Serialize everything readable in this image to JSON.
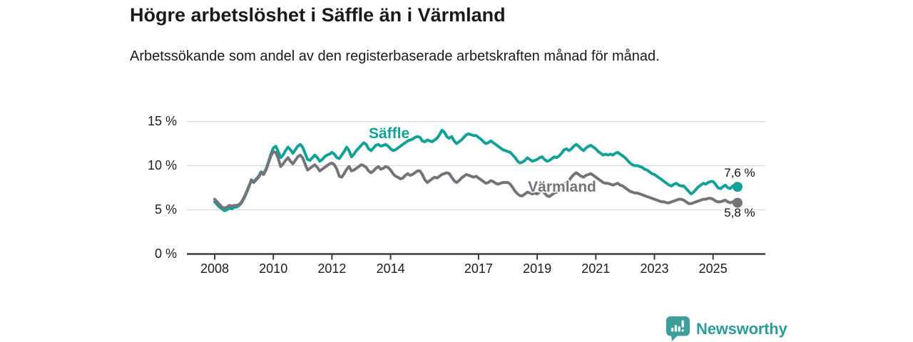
{
  "branding": {
    "logo_text": "Newsworthy",
    "logo_icon": "bar-chart-speech-bubble-icon",
    "logo_color": "#2e9b98",
    "icon_color": "#3d9e9b"
  },
  "chart_data": {
    "type": "line",
    "title": "Högre arbetslöshet i Säffle än i Värmland",
    "subtitle": "Arbetssökande som andel av den registerbaserade arbetskraften månad för månad.",
    "x_start": "2008-01",
    "x_end": "2025-11",
    "x_start_year": 2008,
    "points_per_year": 12,
    "x_tick_labels": [
      "2008",
      "2010",
      "2012",
      "2014",
      "2017",
      "2019",
      "2021",
      "2023",
      "2025"
    ],
    "x_tick_years": [
      2008,
      2010,
      2012,
      2014,
      2017,
      2019,
      2021,
      2023,
      2025
    ],
    "y_tick_labels": [
      "0 %",
      "5 %",
      "10 %",
      "15 %"
    ],
    "y_tick_values": [
      0,
      5,
      10,
      15
    ],
    "ylim": [
      0,
      15.5
    ],
    "grid": "horizontal",
    "legend": "inline-series-labels",
    "axis_color": "#3b3b3b",
    "grid_color": "#d8d8d8",
    "series": [
      {
        "id": "saffle",
        "name": "Säffle",
        "color": "#12a196",
        "end_label": "7,6 %",
        "end_value": 7.6,
        "label_x": 2013.95,
        "label_y": 13.6,
        "values": [
          5.9,
          5.6,
          5.3,
          5.1,
          4.9,
          5.0,
          5.2,
          5.1,
          5.3,
          5.3,
          5.5,
          5.8,
          6.3,
          6.9,
          7.6,
          8.4,
          8.2,
          8.5,
          8.8,
          9.3,
          9.1,
          9.6,
          10.4,
          11.3,
          12.0,
          12.2,
          11.6,
          10.9,
          11.2,
          11.7,
          12.1,
          11.8,
          11.4,
          11.8,
          12.2,
          12.4,
          12.1,
          11.4,
          10.7,
          10.6,
          10.9,
          11.2,
          10.9,
          10.5,
          10.7,
          11.0,
          11.2,
          11.3,
          11.5,
          11.3,
          10.9,
          10.8,
          11.2,
          11.6,
          12.1,
          11.7,
          11.0,
          11.3,
          11.7,
          12.0,
          12.3,
          12.6,
          12.4,
          11.9,
          11.7,
          12.0,
          12.3,
          12.4,
          12.2,
          12.3,
          12.4,
          12.2,
          11.9,
          11.7,
          11.8,
          12.0,
          12.2,
          12.4,
          12.6,
          12.8,
          12.9,
          13.0,
          13.2,
          13.3,
          13.2,
          12.8,
          12.7,
          12.9,
          12.8,
          12.7,
          12.9,
          13.1,
          13.5,
          14.0,
          13.8,
          13.3,
          13.1,
          13.3,
          12.8,
          12.5,
          12.7,
          12.9,
          13.2,
          13.5,
          13.6,
          13.5,
          13.4,
          13.4,
          13.2,
          13.0,
          12.7,
          12.5,
          12.6,
          12.8,
          12.6,
          12.4,
          12.2,
          12.0,
          11.8,
          11.7,
          11.6,
          11.5,
          11.2,
          10.9,
          10.5,
          10.3,
          10.4,
          10.6,
          10.9,
          10.7,
          10.5,
          10.6,
          10.7,
          10.9,
          11.0,
          10.7,
          10.5,
          10.6,
          10.8,
          11.0,
          10.9,
          11.1,
          11.4,
          11.8,
          11.9,
          11.7,
          11.9,
          12.2,
          12.4,
          12.2,
          11.9,
          11.7,
          12.0,
          12.2,
          12.3,
          12.1,
          11.9,
          11.6,
          11.4,
          11.2,
          11.3,
          11.2,
          11.3,
          11.2,
          11.4,
          11.5,
          11.3,
          11.1,
          10.9,
          10.6,
          10.3,
          10.1,
          10.0,
          10.0,
          9.9,
          9.8,
          9.6,
          9.5,
          9.3,
          9.1,
          9.0,
          8.8,
          8.6,
          8.4,
          8.2,
          8.0,
          7.8,
          7.7,
          7.9,
          8.0,
          7.8,
          7.7,
          7.7,
          7.4,
          7.1,
          6.8,
          7.0,
          7.3,
          7.6,
          7.8,
          8.0,
          7.9,
          8.1,
          8.2,
          8.2,
          7.9,
          7.5,
          7.4,
          7.6,
          7.8,
          7.5,
          7.4,
          7.7,
          7.5,
          7.6
        ]
      },
      {
        "id": "varmland",
        "name": "Värmland",
        "color": "#767279",
        "end_label": "5,8 %",
        "end_value": 5.8,
        "label_x": 2019.85,
        "label_y": 7.55,
        "values": [
          6.2,
          5.9,
          5.6,
          5.3,
          5.2,
          5.3,
          5.5,
          5.4,
          5.5,
          5.5,
          5.6,
          5.9,
          6.4,
          7.0,
          7.7,
          8.3,
          8.1,
          8.4,
          8.7,
          9.2,
          9.0,
          9.5,
          10.3,
          11.1,
          11.6,
          11.5,
          10.8,
          9.9,
          10.2,
          10.6,
          10.9,
          10.5,
          10.2,
          10.6,
          11.0,
          11.2,
          10.9,
          10.2,
          9.5,
          9.7,
          9.9,
          10.1,
          9.8,
          9.4,
          9.6,
          9.8,
          10.0,
          10.2,
          10.3,
          10.1,
          9.6,
          8.8,
          8.7,
          9.1,
          9.6,
          9.9,
          9.4,
          9.5,
          9.7,
          9.9,
          10.1,
          10.0,
          9.8,
          9.4,
          9.2,
          9.4,
          9.7,
          9.9,
          9.6,
          9.7,
          9.9,
          9.8,
          9.5,
          9.1,
          8.8,
          8.7,
          8.5,
          8.6,
          8.9,
          9.1,
          8.9,
          9.0,
          9.2,
          9.4,
          9.4,
          9.0,
          8.4,
          8.1,
          8.3,
          8.5,
          8.7,
          8.6,
          8.8,
          9.0,
          9.1,
          9.2,
          9.1,
          8.7,
          8.3,
          8.1,
          8.3,
          8.6,
          8.8,
          9.0,
          8.9,
          8.8,
          8.7,
          8.8,
          8.6,
          8.4,
          8.2,
          8.0,
          8.1,
          8.3,
          8.2,
          8.0,
          7.9,
          8.0,
          8.1,
          8.1,
          8.1,
          7.9,
          7.5,
          7.1,
          6.8,
          6.6,
          6.6,
          6.8,
          7.0,
          6.9,
          6.8,
          6.9,
          6.8,
          7.0,
          7.2,
          6.9,
          6.6,
          6.5,
          6.7,
          6.9,
          7.0,
          7.2,
          7.5,
          7.9,
          8.1,
          8.3,
          8.7,
          9.0,
          9.2,
          9.0,
          8.8,
          8.7,
          8.9,
          9.0,
          9.1,
          8.9,
          8.7,
          8.5,
          8.3,
          8.1,
          8.0,
          8.0,
          7.9,
          7.8,
          7.9,
          8.0,
          7.8,
          7.7,
          7.5,
          7.3,
          7.1,
          7.0,
          6.9,
          6.9,
          6.8,
          6.7,
          6.6,
          6.5,
          6.4,
          6.3,
          6.2,
          6.1,
          6.0,
          5.9,
          5.9,
          5.8,
          5.8,
          5.9,
          6.0,
          6.1,
          6.2,
          6.2,
          6.1,
          5.9,
          5.7,
          5.7,
          5.8,
          5.9,
          6.0,
          6.1,
          6.2,
          6.2,
          6.3,
          6.3,
          6.2,
          6.0,
          5.9,
          5.9,
          6.0,
          6.1,
          5.9,
          5.8,
          5.9,
          5.9,
          5.8
        ]
      }
    ]
  }
}
